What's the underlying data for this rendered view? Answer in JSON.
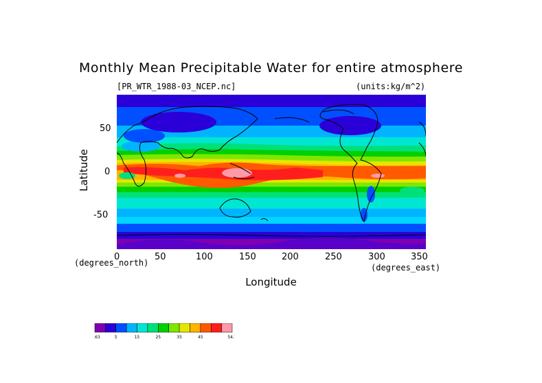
{
  "title": "Monthly Mean Precipitable Water for entire atmosphere",
  "file_label": "[PR_WTR_1988-03_NCEP.nc]",
  "units_label": "(units:kg/m^2)",
  "axes": {
    "x_title": "Longitude",
    "y_title": "Latitude",
    "x_units": "(degrees_east)",
    "y_units": "(degrees_north)",
    "x_ticks": [
      "0",
      "50",
      "100",
      "150",
      "200",
      "250",
      "300",
      "350"
    ],
    "y_ticks": [
      "50",
      "0",
      "-50"
    ]
  },
  "map": {
    "lon_range": [
      0,
      360
    ],
    "lat_range": [
      -90,
      90
    ],
    "field": "precipitable water",
    "projection": "equirectangular"
  },
  "colorbar": {
    "labels": [
      "-1.63",
      "5",
      "15",
      "25",
      "35",
      "45",
      "54.1"
    ],
    "colors": [
      "#7f00b0",
      "#2b00d8",
      "#0050ff",
      "#00b4ff",
      "#00e6d2",
      "#00e07a",
      "#00d000",
      "#80e600",
      "#e6e600",
      "#ffb400",
      "#ff5a00",
      "#ff1e1e",
      "#ff9aa8"
    ]
  }
}
